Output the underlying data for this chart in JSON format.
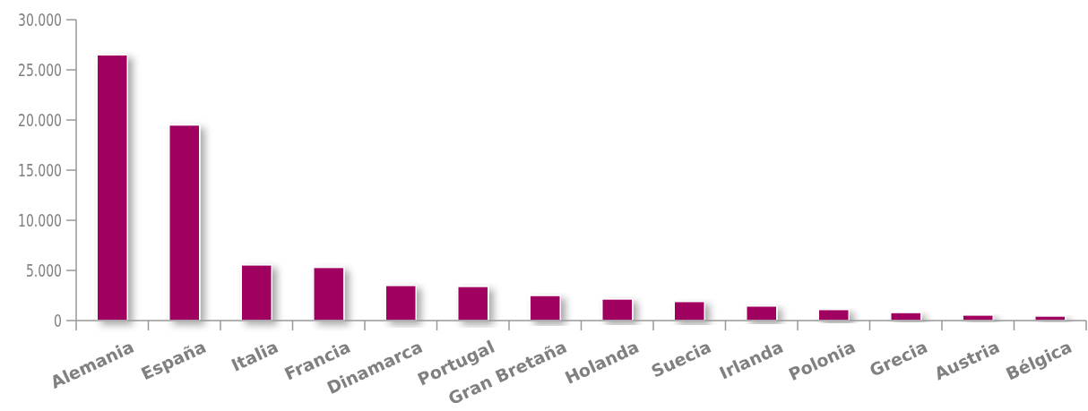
{
  "chart_data": {
    "type": "bar",
    "categories": [
      "Alemania",
      "España",
      "Italia",
      "Francia",
      "Dinamarca",
      "Portugal",
      "Gran Bretaña",
      "Holanda",
      "Suecia",
      "Irlanda",
      "Polonia",
      "Grecia",
      "Austria",
      "Bélgica"
    ],
    "values": [
      26500,
      19500,
      5550,
      5300,
      3500,
      3400,
      2500,
      2150,
      1900,
      1450,
      1100,
      800,
      550,
      450
    ],
    "color": "#a0005f",
    "ylim": [
      0,
      30000
    ],
    "yticks": [
      0,
      {
        "value": 5000,
        "label": "5.000"
      },
      {
        "value": 10000,
        "label": "10.000"
      },
      {
        "value": 15000,
        "label": "15.000"
      },
      {
        "value": 20000,
        "label": "20.000"
      },
      {
        "value": 25000,
        "label": "25.000"
      },
      {
        "value": 30000,
        "label": "30.000"
      }
    ],
    "grid": false
  }
}
